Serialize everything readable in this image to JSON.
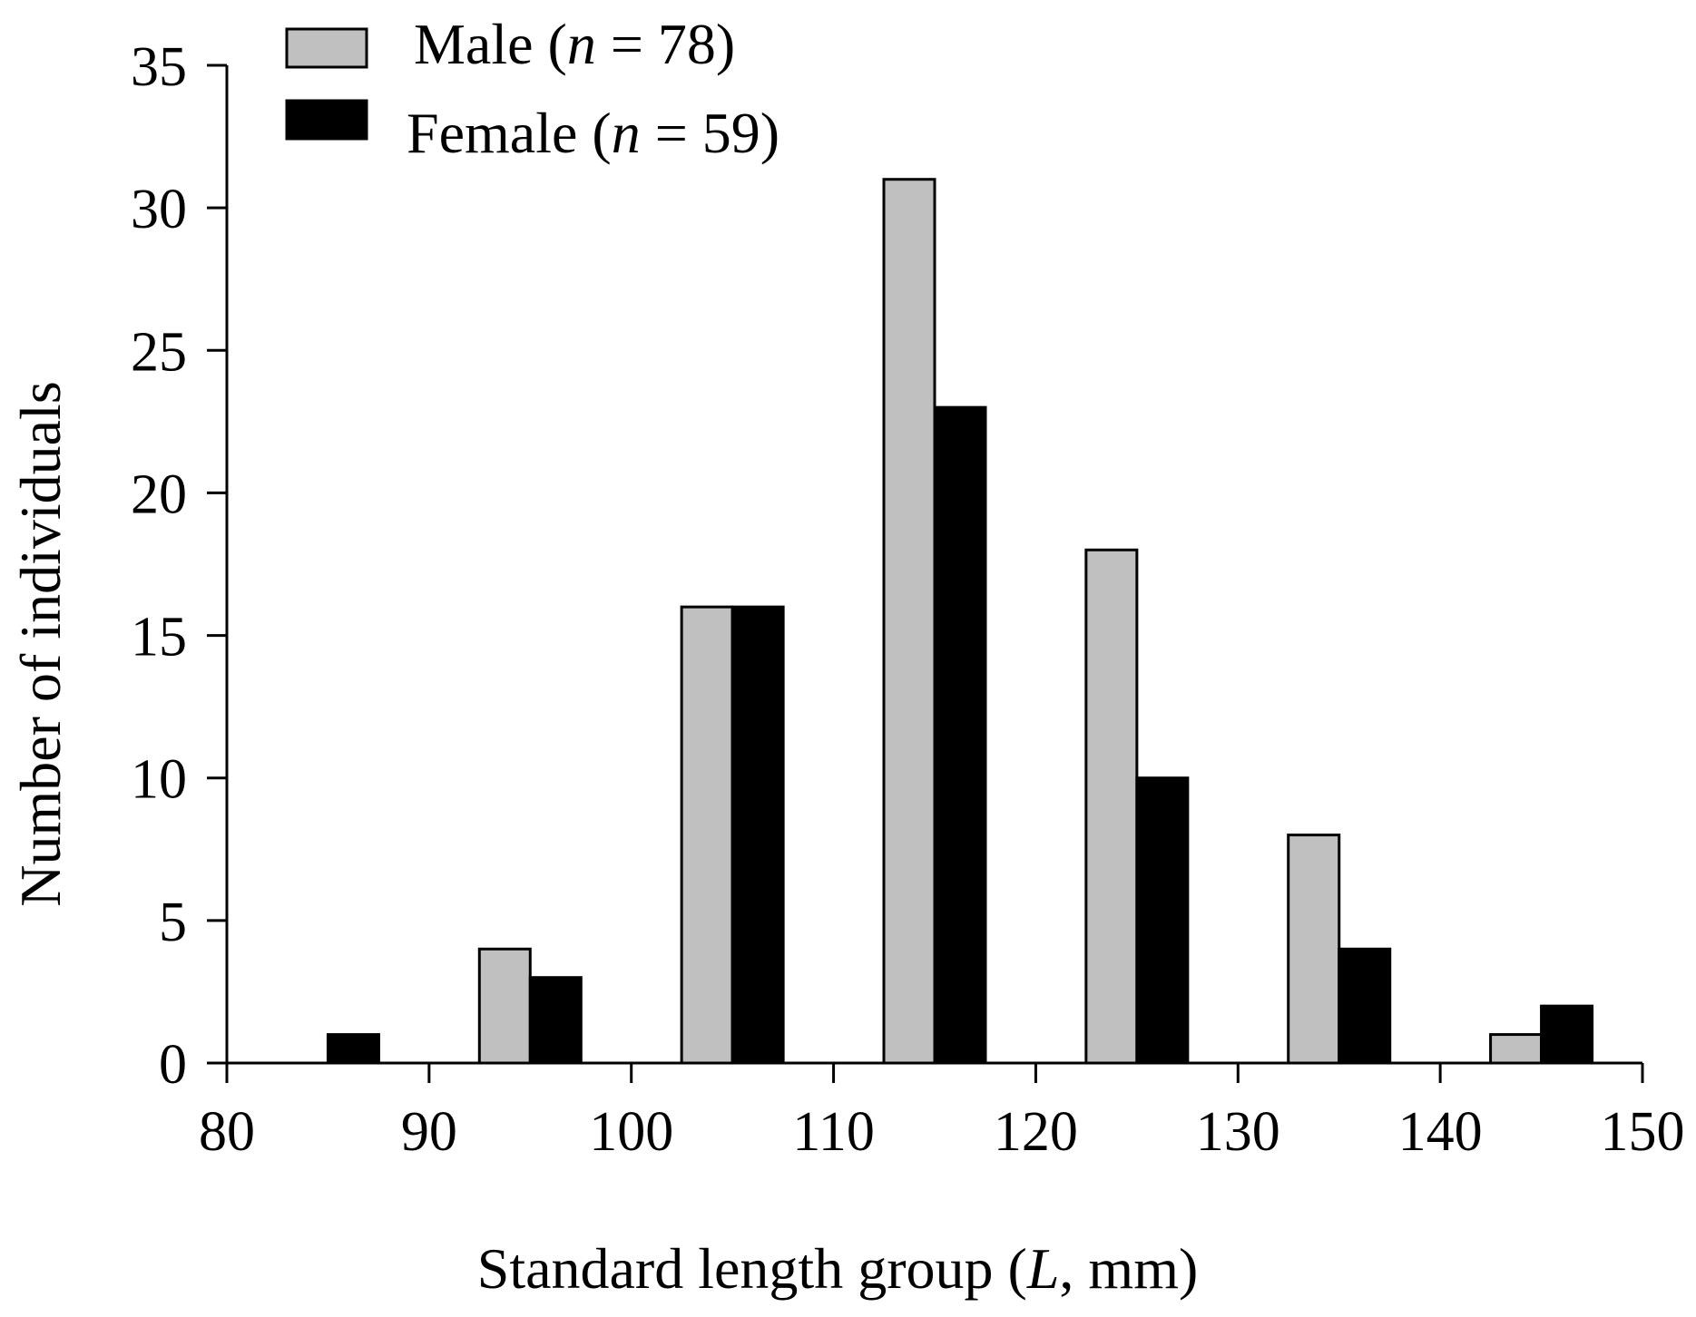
{
  "chart_data": {
    "type": "bar",
    "title": "",
    "xlabel": "Standard length group (L, mm)",
    "xlabel_parts": [
      "Standard length group (",
      "L",
      ", mm)"
    ],
    "ylabel": "Number of individuals",
    "xlim": [
      80,
      150
    ],
    "ylim": [
      0,
      35
    ],
    "xticks": [
      "80",
      "90",
      "100",
      "110",
      "120",
      "130",
      "140",
      "150"
    ],
    "yticks": [
      "0",
      "5",
      "10",
      "15",
      "20",
      "25",
      "30",
      "35"
    ],
    "categories": [
      "85",
      "95",
      "105",
      "115",
      "125",
      "135",
      "145"
    ],
    "series": [
      {
        "name": "Male (n = 78)",
        "name_parts": [
          "Male (",
          "n",
          " = 78)"
        ],
        "color": "#c0c0c0",
        "values": [
          0,
          4,
          16,
          31,
          18,
          8,
          1
        ]
      },
      {
        "name": "Female (n = 59)",
        "name_parts": [
          "Female (",
          "n",
          " = 59)"
        ],
        "color": "#000000",
        "values": [
          1,
          3,
          16,
          23,
          10,
          4,
          2
        ]
      }
    ],
    "grid": false,
    "legend_position": "top-left"
  }
}
